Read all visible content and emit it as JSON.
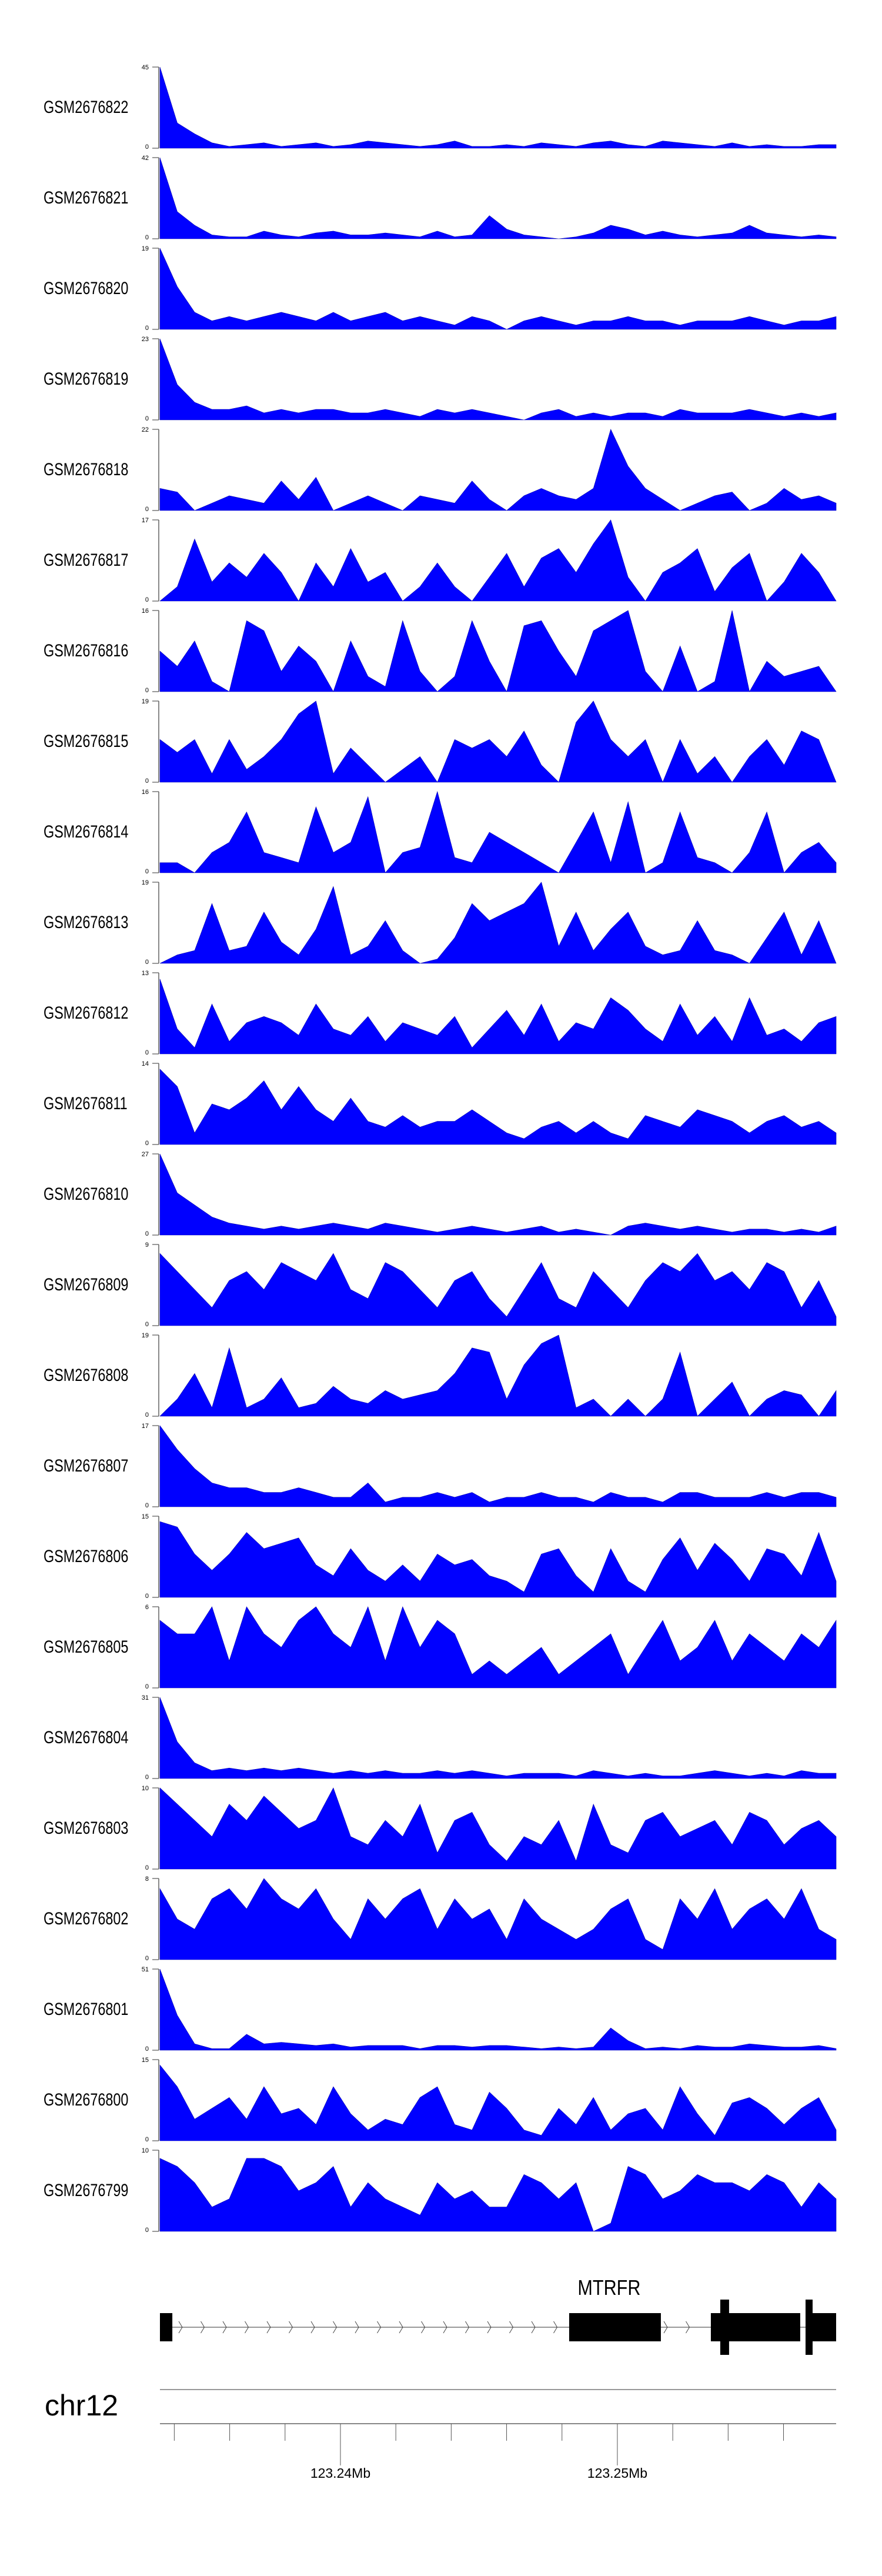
{
  "chart_data": {
    "type": "area",
    "title": "",
    "fill_color": "#0000FF",
    "chromosome": "chr12",
    "xlim": [
      123233482,
      123257900
    ],
    "x_unit": "bp",
    "y_min_label": "0",
    "tracks": [
      {
        "name": "GSM2676822",
        "ymax": 45,
        "values": [
          45,
          14,
          8,
          3,
          1,
          2,
          3,
          1,
          2,
          3,
          1,
          2,
          4,
          3,
          2,
          1,
          2,
          4,
          1,
          1,
          2,
          1,
          3,
          2,
          1,
          3,
          4,
          2,
          1,
          4,
          3,
          2,
          1,
          3,
          1,
          2,
          1,
          1,
          2,
          2
        ]
      },
      {
        "name": "GSM2676821",
        "ymax": 42,
        "values": [
          42,
          14,
          7,
          2,
          1,
          1,
          4,
          2,
          1,
          3,
          4,
          2,
          2,
          3,
          2,
          1,
          4,
          1,
          2,
          12,
          5,
          2,
          1,
          0,
          1,
          3,
          7,
          5,
          2,
          4,
          2,
          1,
          2,
          3,
          7,
          3,
          2,
          1,
          2,
          1
        ]
      },
      {
        "name": "GSM2676820",
        "ymax": 19,
        "values": [
          19,
          10,
          4,
          2,
          3,
          2,
          3,
          4,
          3,
          2,
          4,
          2,
          3,
          4,
          2,
          3,
          2,
          1,
          3,
          2,
          0,
          2,
          3,
          2,
          1,
          2,
          2,
          3,
          2,
          2,
          1,
          2,
          2,
          2,
          3,
          2,
          1,
          2,
          2,
          3
        ]
      },
      {
        "name": "GSM2676819",
        "ymax": 23,
        "values": [
          23,
          10,
          5,
          3,
          3,
          4,
          2,
          3,
          2,
          3,
          3,
          2,
          2,
          3,
          2,
          1,
          3,
          2,
          3,
          2,
          1,
          0,
          2,
          3,
          1,
          2,
          1,
          2,
          2,
          1,
          3,
          2,
          2,
          2,
          3,
          2,
          1,
          2,
          1,
          2
        ]
      },
      {
        "name": "GSM2676818",
        "ymax": 22,
        "values": [
          6,
          5,
          0,
          2,
          4,
          3,
          2,
          8,
          3,
          9,
          0,
          2,
          4,
          2,
          0,
          4,
          3,
          2,
          8,
          3,
          0,
          4,
          6,
          4,
          3,
          6,
          22,
          12,
          6,
          3,
          0,
          2,
          4,
          5,
          0,
          2,
          6,
          3,
          4,
          2
        ]
      },
      {
        "name": "GSM2676817",
        "ymax": 17,
        "values": [
          0,
          3,
          13,
          4,
          8,
          5,
          10,
          6,
          0,
          8,
          3,
          11,
          4,
          6,
          0,
          3,
          8,
          3,
          0,
          5,
          10,
          3,
          9,
          11,
          6,
          12,
          17,
          5,
          0,
          6,
          8,
          11,
          2,
          7,
          10,
          0,
          4,
          10,
          6,
          0
        ]
      },
      {
        "name": "GSM2676816",
        "ymax": 16,
        "values": [
          8,
          5,
          10,
          2,
          0,
          14,
          12,
          4,
          9,
          6,
          0,
          10,
          3,
          1,
          14,
          4,
          0,
          3,
          14,
          6,
          0,
          13,
          14,
          8,
          3,
          12,
          14,
          16,
          4,
          0,
          9,
          0,
          2,
          16,
          0,
          6,
          3,
          4,
          5,
          0
        ]
      },
      {
        "name": "GSM2676815",
        "ymax": 19,
        "values": [
          10,
          7,
          10,
          2,
          10,
          3,
          6,
          10,
          16,
          19,
          2,
          8,
          4,
          0,
          3,
          6,
          0,
          10,
          8,
          10,
          6,
          12,
          4,
          0,
          14,
          19,
          10,
          6,
          10,
          0,
          10,
          2,
          6,
          0,
          6,
          10,
          4,
          12,
          10,
          0
        ]
      },
      {
        "name": "GSM2676814",
        "ymax": 16,
        "values": [
          2,
          2,
          0,
          4,
          6,
          12,
          4,
          3,
          2,
          13,
          4,
          6,
          15,
          0,
          4,
          5,
          16,
          3,
          2,
          8,
          6,
          4,
          2,
          0,
          6,
          12,
          2,
          14,
          0,
          2,
          12,
          3,
          2,
          0,
          4,
          12,
          0,
          4,
          6,
          2
        ]
      },
      {
        "name": "GSM2676813",
        "ymax": 19,
        "values": [
          0,
          2,
          3,
          14,
          3,
          4,
          12,
          5,
          2,
          8,
          18,
          2,
          4,
          10,
          3,
          0,
          1,
          6,
          14,
          10,
          12,
          14,
          19,
          4,
          12,
          3,
          8,
          12,
          4,
          2,
          3,
          10,
          3,
          2,
          0,
          6,
          12,
          2,
          10,
          0
        ]
      },
      {
        "name": "GSM2676812",
        "ymax": 13,
        "values": [
          12,
          4,
          1,
          8,
          2,
          5,
          6,
          5,
          3,
          8,
          4,
          3,
          6,
          2,
          5,
          4,
          3,
          6,
          1,
          4,
          7,
          3,
          8,
          2,
          5,
          4,
          9,
          7,
          4,
          2,
          8,
          3,
          6,
          2,
          9,
          3,
          4,
          2,
          5,
          6
        ]
      },
      {
        "name": "GSM2676811",
        "ymax": 14,
        "values": [
          13,
          10,
          2,
          7,
          6,
          8,
          11,
          6,
          10,
          6,
          4,
          8,
          4,
          3,
          5,
          3,
          4,
          4,
          6,
          4,
          2,
          1,
          3,
          4,
          2,
          4,
          2,
          1,
          5,
          4,
          3,
          6,
          5,
          4,
          2,
          4,
          5,
          3,
          4,
          2
        ]
      },
      {
        "name": "GSM2676810",
        "ymax": 27,
        "values": [
          27,
          14,
          10,
          6,
          4,
          3,
          2,
          3,
          2,
          3,
          4,
          3,
          2,
          4,
          3,
          2,
          1,
          2,
          3,
          2,
          1,
          2,
          3,
          1,
          2,
          1,
          0,
          3,
          4,
          3,
          2,
          3,
          2,
          1,
          2,
          2,
          1,
          2,
          1,
          3
        ]
      },
      {
        "name": "GSM2676809",
        "ymax": 9,
        "values": [
          8,
          6,
          4,
          2,
          5,
          6,
          4,
          7,
          6,
          5,
          8,
          4,
          3,
          7,
          6,
          4,
          2,
          5,
          6,
          3,
          1,
          4,
          7,
          3,
          2,
          6,
          4,
          2,
          5,
          7,
          6,
          8,
          5,
          6,
          4,
          7,
          6,
          2,
          5,
          1
        ]
      },
      {
        "name": "GSM2676808",
        "ymax": 19,
        "values": [
          0,
          4,
          10,
          2,
          16,
          2,
          4,
          9,
          2,
          3,
          7,
          4,
          3,
          6,
          4,
          5,
          6,
          10,
          16,
          15,
          4,
          12,
          17,
          19,
          2,
          4,
          0,
          4,
          0,
          4,
          15,
          0,
          4,
          8,
          0,
          4,
          6,
          5,
          0,
          6
        ]
      },
      {
        "name": "GSM2676807",
        "ymax": 17,
        "values": [
          17,
          12,
          8,
          5,
          4,
          4,
          3,
          3,
          4,
          3,
          2,
          2,
          5,
          1,
          2,
          2,
          3,
          2,
          3,
          1,
          2,
          2,
          3,
          2,
          2,
          1,
          3,
          2,
          2,
          1,
          3,
          3,
          2,
          2,
          2,
          3,
          2,
          3,
          3,
          2
        ]
      },
      {
        "name": "GSM2676806",
        "ymax": 15,
        "values": [
          14,
          13,
          8,
          5,
          8,
          12,
          9,
          10,
          11,
          6,
          4,
          9,
          5,
          3,
          6,
          3,
          8,
          6,
          7,
          4,
          3,
          1,
          8,
          9,
          4,
          1,
          9,
          3,
          1,
          7,
          11,
          5,
          10,
          7,
          3,
          9,
          8,
          4,
          12,
          3
        ]
      },
      {
        "name": "GSM2676805",
        "ymax": 6,
        "values": [
          5,
          4,
          4,
          6,
          2,
          6,
          4,
          3,
          5,
          6,
          4,
          3,
          6,
          2,
          6,
          3,
          5,
          4,
          1,
          2,
          1,
          2,
          3,
          1,
          2,
          3,
          4,
          1,
          3,
          5,
          2,
          3,
          5,
          2,
          4,
          3,
          2,
          4,
          3,
          5
        ]
      },
      {
        "name": "GSM2676804",
        "ymax": 31,
        "values": [
          31,
          14,
          6,
          3,
          4,
          3,
          4,
          3,
          4,
          3,
          2,
          3,
          2,
          3,
          2,
          2,
          3,
          2,
          3,
          2,
          1,
          2,
          2,
          2,
          1,
          3,
          2,
          1,
          2,
          1,
          1,
          2,
          3,
          2,
          1,
          2,
          1,
          3,
          2,
          2
        ]
      },
      {
        "name": "GSM2676803",
        "ymax": 10,
        "values": [
          10,
          8,
          6,
          4,
          8,
          6,
          9,
          7,
          5,
          6,
          10,
          4,
          3,
          6,
          4,
          8,
          2,
          6,
          7,
          3,
          1,
          4,
          3,
          6,
          1,
          8,
          3,
          2,
          6,
          7,
          4,
          5,
          6,
          3,
          7,
          6,
          3,
          5,
          6,
          4
        ]
      },
      {
        "name": "GSM2676802",
        "ymax": 8,
        "values": [
          7,
          4,
          3,
          6,
          7,
          5,
          8,
          6,
          5,
          7,
          4,
          2,
          6,
          4,
          6,
          7,
          3,
          6,
          4,
          5,
          2,
          6,
          4,
          3,
          2,
          3,
          5,
          6,
          2,
          1,
          6,
          4,
          7,
          3,
          5,
          6,
          4,
          7,
          3,
          2
        ]
      },
      {
        "name": "GSM2676801",
        "ymax": 51,
        "values": [
          51,
          22,
          4,
          1,
          1,
          10,
          4,
          5,
          4,
          3,
          4,
          2,
          3,
          3,
          3,
          1,
          3,
          3,
          2,
          3,
          3,
          2,
          1,
          2,
          1,
          2,
          14,
          6,
          1,
          2,
          1,
          3,
          2,
          2,
          4,
          3,
          2,
          2,
          3,
          1
        ]
      },
      {
        "name": "GSM2676800",
        "ymax": 15,
        "values": [
          14,
          10,
          4,
          6,
          8,
          4,
          10,
          5,
          6,
          3,
          10,
          5,
          2,
          4,
          3,
          8,
          10,
          3,
          2,
          9,
          6,
          2,
          1,
          6,
          3,
          8,
          2,
          5,
          6,
          2,
          10,
          5,
          1,
          7,
          8,
          6,
          3,
          6,
          8,
          2
        ]
      },
      {
        "name": "GSM2676799",
        "ymax": 10,
        "values": [
          9,
          8,
          6,
          3,
          4,
          9,
          9,
          8,
          5,
          6,
          8,
          3,
          6,
          4,
          3,
          2,
          6,
          4,
          5,
          3,
          3,
          7,
          6,
          4,
          6,
          0,
          1,
          8,
          7,
          4,
          5,
          7,
          6,
          6,
          5,
          7,
          6,
          3,
          6,
          4
        ]
      }
    ],
    "gene": {
      "name": "MTRFR",
      "strand": "+",
      "start": 123233482,
      "end": 123257900,
      "exons": [
        [
          123233482,
          123233930
        ],
        [
          123248259,
          123251571
        ],
        [
          123253376,
          123256603
        ],
        [
          123256816,
          123257900
        ]
      ],
      "tall_marks": [
        [
          123253716,
          123254034
        ],
        [
          123256795,
          123257050
        ]
      ]
    },
    "axis": {
      "tick_start": 123234000,
      "tick_end": 123256000,
      "tick_step": 2000,
      "labels": [
        {
          "pos": 123240000,
          "text": "123.24Mb"
        },
        {
          "pos": 123250000,
          "text": "123.25Mb"
        }
      ]
    }
  }
}
